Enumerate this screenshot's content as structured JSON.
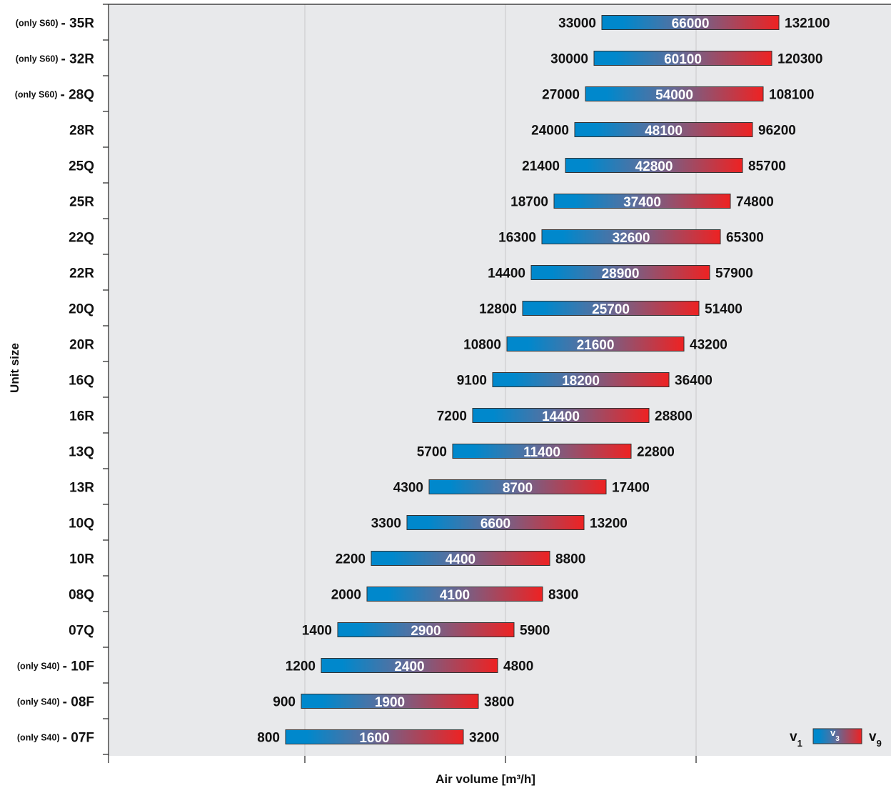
{
  "chart_data": {
    "type": "bar",
    "xlabel": "Air volume [m³/h]",
    "ylabel": "Unit size",
    "grid": true,
    "legend": {
      "placement": "bottom-right",
      "left": "v",
      "left_sub": "1",
      "mid": "v",
      "mid_sub": "3",
      "right": "v",
      "right_sub": "9"
    },
    "colors": {
      "low": "#0088cc",
      "mid": "#5a6f9e",
      "high": "#ee2222",
      "plot_bg": "#e8e9eb",
      "grid": "#c8c8c8"
    },
    "rows": [
      {
        "prefix": "(only S60)",
        "unit": "- 35R",
        "v1": 33000,
        "v3": 66000,
        "v9": 132100
      },
      {
        "prefix": "(only S60)",
        "unit": "- 32R",
        "v1": 30000,
        "v3": 60100,
        "v9": 120300
      },
      {
        "prefix": "(only S60)",
        "unit": "- 28Q",
        "v1": 27000,
        "v3": 54000,
        "v9": 108100
      },
      {
        "prefix": "",
        "unit": "28R",
        "v1": 24000,
        "v3": 48100,
        "v9": 96200
      },
      {
        "prefix": "",
        "unit": "25Q",
        "v1": 21400,
        "v3": 42800,
        "v9": 85700
      },
      {
        "prefix": "",
        "unit": "25R",
        "v1": 18700,
        "v3": 37400,
        "v9": 74800
      },
      {
        "prefix": "",
        "unit": "22Q",
        "v1": 16300,
        "v3": 32600,
        "v9": 65300
      },
      {
        "prefix": "",
        "unit": "22R",
        "v1": 14400,
        "v3": 28900,
        "v9": 57900
      },
      {
        "prefix": "",
        "unit": "20Q",
        "v1": 12800,
        "v3": 25700,
        "v9": 51400
      },
      {
        "prefix": "",
        "unit": "20R",
        "v1": 10800,
        "v3": 21600,
        "v9": 43200
      },
      {
        "prefix": "",
        "unit": "16Q",
        "v1": 9100,
        "v3": 18200,
        "v9": 36400
      },
      {
        "prefix": "",
        "unit": "16R",
        "v1": 7200,
        "v3": 14400,
        "v9": 28800
      },
      {
        "prefix": "",
        "unit": "13Q",
        "v1": 5700,
        "v3": 11400,
        "v9": 22800
      },
      {
        "prefix": "",
        "unit": "13R",
        "v1": 4300,
        "v3": 8700,
        "v9": 17400
      },
      {
        "prefix": "",
        "unit": "10Q",
        "v1": 3300,
        "v3": 6600,
        "v9": 13200
      },
      {
        "prefix": "",
        "unit": "10R",
        "v1": 2200,
        "v3": 4400,
        "v9": 8800
      },
      {
        "prefix": "",
        "unit": "08Q",
        "v1": 2000,
        "v3": 4100,
        "v9": 8300
      },
      {
        "prefix": "",
        "unit": "07Q",
        "v1": 1400,
        "v3": 2900,
        "v9": 5900
      },
      {
        "prefix": "(only S40)",
        "unit": "- 10F",
        "v1": 1200,
        "v3": 2400,
        "v9": 4800
      },
      {
        "prefix": "(only S40)",
        "unit": "- 08F",
        "v1": 900,
        "v3": 1900,
        "v9": 3800
      },
      {
        "prefix": "(only S40)",
        "unit": "- 07F",
        "v1": 800,
        "v3": 1600,
        "v9": 3200
      }
    ]
  }
}
